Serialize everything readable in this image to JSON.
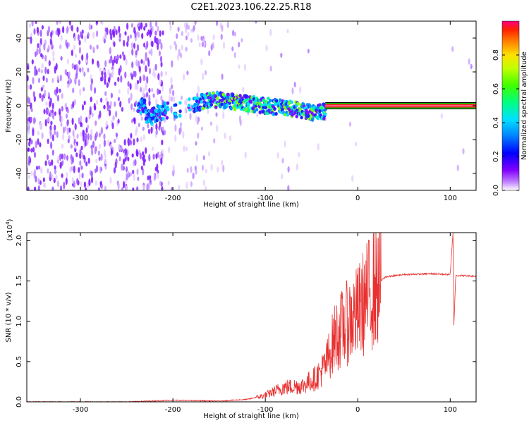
{
  "title": "C2E1.2023.106.22.25.R18",
  "spectrogram": {
    "type": "heatmap",
    "xlabel": "Height of straight line (km)",
    "ylabel": "Frequency (Hz)",
    "xlim": [
      -358,
      128
    ],
    "ylim": [
      -50,
      50
    ],
    "xticks": [
      -300,
      -200,
      -100,
      0,
      100
    ],
    "yticks": [
      -40,
      -20,
      0,
      20,
      40
    ],
    "colorbar": {
      "label": "Normalized spectral amplitude",
      "ticks": [
        "0.0",
        "0.2",
        "0.4",
        "0.6",
        "0.8"
      ],
      "range": [
        0,
        1
      ]
    },
    "trace": [
      {
        "x": -230,
        "y": -8
      },
      {
        "x": -210,
        "y": -3
      },
      {
        "x": -190,
        "y": -2
      },
      {
        "x": -160,
        "y": 4
      },
      {
        "x": -130,
        "y": 2
      },
      {
        "x": -100,
        "y": 0
      },
      {
        "x": -70,
        "y": -2
      },
      {
        "x": -50,
        "y": -4
      },
      {
        "x": -40,
        "y": -4
      },
      {
        "x": -30,
        "y": -2
      },
      {
        "x": -10,
        "y": 0
      },
      {
        "x": 0,
        "y": 0
      },
      {
        "x": 128,
        "y": 0
      }
    ],
    "strong_band": {
      "from": -35,
      "to": 128,
      "frequency": 0
    }
  },
  "snr": {
    "type": "line",
    "xlabel": "Height of straight line (km)",
    "ylabel": "SNR (10 * v/v)",
    "scale_label": "(x10",
    "scale_exp": "4",
    "scale_close": ")",
    "xlim": [
      -358,
      128
    ],
    "ylim": [
      0,
      2.1
    ],
    "xticks": [
      -300,
      -200,
      -100,
      0,
      100
    ],
    "yticks": [
      "0.0",
      "0.5",
      "1.0",
      "1.5",
      "2.0"
    ],
    "ytick_values": [
      0,
      0.5,
      1.0,
      1.5,
      2.0
    ],
    "color": "#e83030",
    "series": [
      {
        "x": -358,
        "y": 0.0
      },
      {
        "x": -250,
        "y": 0.0
      },
      {
        "x": -200,
        "y": 0.02
      },
      {
        "x": -150,
        "y": 0.01
      },
      {
        "x": -120,
        "y": 0.03
      },
      {
        "x": -100,
        "y": 0.08
      },
      {
        "x": -80,
        "y": 0.18
      },
      {
        "x": -60,
        "y": 0.2
      },
      {
        "x": -45,
        "y": 0.3
      },
      {
        "x": -35,
        "y": 0.45
      },
      {
        "x": -25,
        "y": 0.8
      },
      {
        "x": -10,
        "y": 1.0
      },
      {
        "x": 0,
        "y": 1.1
      },
      {
        "x": 10,
        "y": 1.3
      },
      {
        "x": 20,
        "y": 1.45
      },
      {
        "x": 30,
        "y": 1.55
      },
      {
        "x": 50,
        "y": 1.58
      },
      {
        "x": 80,
        "y": 1.59
      },
      {
        "x": 100,
        "y": 1.58
      },
      {
        "x": 103,
        "y": 2.1
      },
      {
        "x": 104,
        "y": 0.95
      },
      {
        "x": 106,
        "y": 1.57
      },
      {
        "x": 128,
        "y": 1.56
      }
    ]
  }
}
